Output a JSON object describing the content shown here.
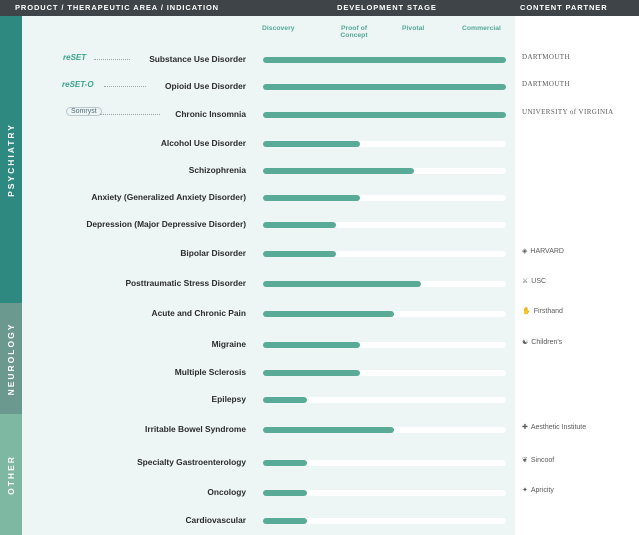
{
  "header": {
    "col1": "PRODUCT / THERAPEUTIC AREA / INDICATION",
    "col2": "DEVELOPMENT STAGE",
    "col3": "CONTENT PARTNER"
  },
  "stages": [
    "Discovery",
    "Proof of Concept",
    "Pivotal",
    "Commercial"
  ],
  "groups": {
    "psychiatry": "PSYCHIATRY",
    "neurology": "NEUROLOGY",
    "other": "OTHER"
  },
  "colors": {
    "header_bg": "#3f4448",
    "bar": "#59ab98",
    "psychiatry": "#2e8a80",
    "neurology": "#6c998f",
    "other": "#7fb8a2",
    "panel_bg": "#eef5f5"
  },
  "rows": [
    {
      "label": "Substance Use Disorder",
      "product": "reSET",
      "progress_pct": 100,
      "partner": "DARTMOUTH"
    },
    {
      "label": "Opioid Use Disorder",
      "product": "reSET-O",
      "progress_pct": 100,
      "partner": "DARTMOUTH"
    },
    {
      "label": "Chronic Insomnia",
      "product": "Somryst",
      "progress_pct": 100,
      "partner": "UNIVERSITY of VIRGINIA"
    },
    {
      "label": "Alcohol Use Disorder",
      "progress_pct": 40
    },
    {
      "label": "Schizophrenia",
      "progress_pct": 62
    },
    {
      "label": "Anxiety (Generalized Anxiety Disorder)",
      "progress_pct": 40
    },
    {
      "label": "Depression (Major Depressive Disorder)",
      "progress_pct": 30
    },
    {
      "label": "Bipolar Disorder",
      "progress_pct": 30,
      "partner": "HARVARD",
      "partner_icon": "crest-icon"
    },
    {
      "label": "Posttraumatic Stress Disorder",
      "progress_pct": 65,
      "partner": "USC",
      "partner_icon": "trojan-icon"
    },
    {
      "label": "Acute and Chronic Pain",
      "progress_pct": 54,
      "partner": "Firsthand",
      "partner_icon": "hand-icon"
    },
    {
      "label": "Migraine",
      "progress_pct": 40,
      "partner": "Children's",
      "partner_icon": "swirl-icon"
    },
    {
      "label": "Multiple Sclerosis",
      "progress_pct": 40
    },
    {
      "label": "Epilepsy",
      "progress_pct": 18
    },
    {
      "label": "Irritable Bowel Syndrome",
      "progress_pct": 54,
      "partner": "Aesthetic Institute",
      "partner_icon": "cross-icon"
    },
    {
      "label": "Specialty Gastroenterology",
      "progress_pct": 18,
      "partner": "Sincoof",
      "partner_icon": "leaf-icon"
    },
    {
      "label": "Oncology",
      "progress_pct": 18,
      "partner": "Apricity",
      "partner_icon": "star-icon"
    },
    {
      "label": "Cardiovascular",
      "progress_pct": 18
    }
  ]
}
